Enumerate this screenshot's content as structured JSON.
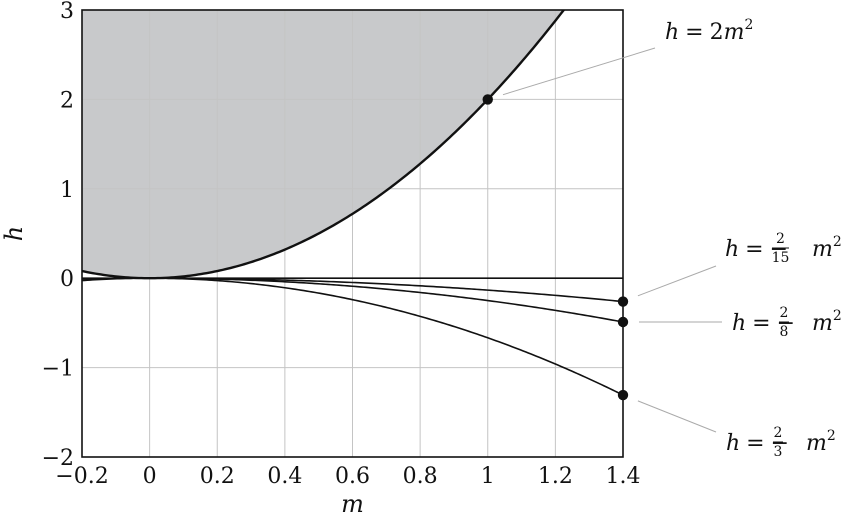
{
  "chart_data": {
    "type": "line",
    "xlabel": "m",
    "ylabel": "h",
    "xlim": [
      -0.2,
      1.4
    ],
    "ylim": [
      -2,
      3
    ],
    "x_ticks": [
      "−0.2",
      "0",
      "0.2",
      "0.4",
      "0.6",
      "0.8",
      "1",
      "1.2",
      "1.4"
    ],
    "y_ticks": [
      "−2",
      "−1",
      "0",
      "1",
      "2",
      "3"
    ],
    "grid": true,
    "shaded_region": {
      "description_curve": "h = 2m^2",
      "side": "above"
    },
    "series": [
      {
        "name": "h = 2m^2",
        "coef": 2,
        "points": [
          [
            -0.2,
            0.08
          ],
          [
            0,
            0
          ],
          [
            0.4,
            0.32
          ],
          [
            0.8,
            1.28
          ],
          [
            1.0,
            2.0
          ],
          [
            1.2,
            2.88
          ],
          [
            1.2247,
            3.0
          ]
        ]
      },
      {
        "name": "h = 0",
        "coef": 0,
        "points": [
          [
            -0.2,
            0
          ],
          [
            1.4,
            0
          ]
        ]
      },
      {
        "name": "h = −2/15 m^2",
        "coef": -0.13333,
        "points": [
          [
            -0.2,
            -0.0053
          ],
          [
            0,
            0
          ],
          [
            0.7,
            -0.0653
          ],
          [
            1.4,
            -0.2613
          ]
        ]
      },
      {
        "name": "h = −2/8 m^2",
        "coef": -0.25,
        "points": [
          [
            -0.2,
            -0.01
          ],
          [
            0,
            0
          ],
          [
            0.7,
            -0.1225
          ],
          [
            1.4,
            -0.49
          ]
        ]
      },
      {
        "name": "h = −2/3 m^2",
        "coef": -0.66667,
        "points": [
          [
            -0.2,
            -0.0267
          ],
          [
            0,
            0
          ],
          [
            0.7,
            -0.3267
          ],
          [
            1.4,
            -1.3067
          ]
        ]
      }
    ],
    "marked_points": [
      {
        "x": 1.0,
        "y": 2.0
      },
      {
        "x": 1.4,
        "y": -0.2613
      },
      {
        "x": 1.4,
        "y": -0.49
      },
      {
        "x": 1.4,
        "y": -1.3067
      }
    ],
    "annotations": [
      {
        "lhs": "h",
        "eq": "=",
        "minus": "",
        "num": "",
        "den": "",
        "coef_text": "2",
        "var": "m",
        "exp": "2"
      },
      {
        "lhs": "h",
        "eq": "=",
        "minus": "−",
        "num": "2",
        "den": "15",
        "coef_text": "",
        "var": "m",
        "exp": "2"
      },
      {
        "lhs": "h",
        "eq": "=",
        "minus": "−",
        "num": "2",
        "den": "8",
        "coef_text": "",
        "var": "m",
        "exp": "2"
      },
      {
        "lhs": "h",
        "eq": "=",
        "minus": "−",
        "num": "2",
        "den": "3",
        "coef_text": "",
        "var": "m",
        "exp": "2"
      }
    ],
    "colors": {
      "shade": "#c8c9cb",
      "grid": "#c4c4c4",
      "curve": "#111111",
      "point": "#111111"
    }
  }
}
